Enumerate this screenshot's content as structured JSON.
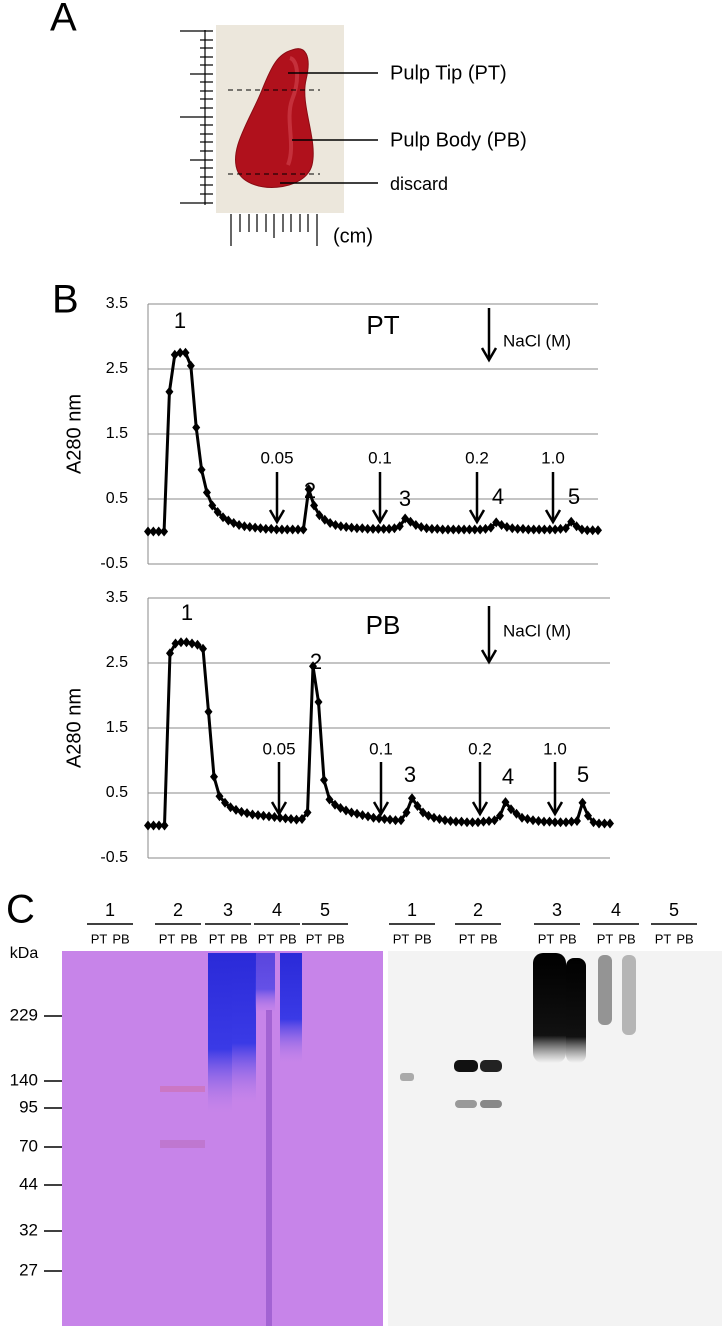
{
  "panel_labels": [
    "A",
    "B",
    "C"
  ],
  "panel_a": {
    "labels": [
      "Pulp Tip (PT)",
      "Pulp Body (PB)",
      "discard"
    ],
    "unit": "(cm)"
  },
  "chart_data": [
    {
      "type": "line",
      "title": "PT",
      "ylabel": "A280 nm",
      "ylim": [
        -0.5,
        3.5
      ],
      "yticks": [
        -0.5,
        0.5,
        1.5,
        2.5,
        3.5
      ],
      "grid": true,
      "color": "#000000",
      "values": [
        0,
        0,
        0,
        0,
        2.15,
        2.72,
        2.75,
        2.75,
        2.55,
        1.6,
        0.95,
        0.6,
        0.4,
        0.3,
        0.22,
        0.17,
        0.13,
        0.1,
        0.08,
        0.07,
        0.06,
        0.05,
        0.04,
        0.04,
        0.03,
        0.03,
        0.03,
        0.03,
        0.03,
        0.03,
        0.65,
        0.4,
        0.25,
        0.18,
        0.13,
        0.1,
        0.08,
        0.07,
        0.06,
        0.05,
        0.05,
        0.04,
        0.04,
        0.04,
        0.04,
        0.04,
        0.05,
        0.08,
        0.2,
        0.15,
        0.1,
        0.07,
        0.05,
        0.04,
        0.04,
        0.03,
        0.03,
        0.03,
        0.03,
        0.03,
        0.03,
        0.03,
        0.03,
        0.04,
        0.06,
        0.14,
        0.1,
        0.07,
        0.05,
        0.04,
        0.04,
        0.03,
        0.03,
        0.03,
        0.03,
        0.03,
        0.03,
        0.04,
        0.05,
        0.15,
        0.08,
        0.03,
        0.02,
        0.02,
        0.02
      ],
      "peak_labels": [
        "1",
        "2",
        "3",
        "4",
        "5"
      ],
      "salt_label": "NaCl (M)",
      "salt_steps": [
        "0.05",
        "0.1",
        "0.2",
        "1.0"
      ]
    },
    {
      "type": "line",
      "title": "PB",
      "ylabel": "A280 nm",
      "ylim": [
        -0.5,
        3.5
      ],
      "yticks": [
        -0.5,
        0.5,
        1.5,
        2.5,
        3.5
      ],
      "grid": true,
      "color": "#000000",
      "values": [
        0,
        0,
        0,
        0,
        2.65,
        2.8,
        2.82,
        2.82,
        2.8,
        2.78,
        2.72,
        1.75,
        0.75,
        0.45,
        0.35,
        0.28,
        0.24,
        0.21,
        0.19,
        0.17,
        0.16,
        0.15,
        0.14,
        0.13,
        0.12,
        0.11,
        0.1,
        0.09,
        0.1,
        0.2,
        2.45,
        1.9,
        0.7,
        0.4,
        0.32,
        0.27,
        0.23,
        0.2,
        0.18,
        0.16,
        0.14,
        0.12,
        0.11,
        0.1,
        0.09,
        0.08,
        0.08,
        0.2,
        0.42,
        0.3,
        0.2,
        0.15,
        0.12,
        0.1,
        0.08,
        0.07,
        0.06,
        0.06,
        0.05,
        0.05,
        0.05,
        0.06,
        0.07,
        0.08,
        0.15,
        0.36,
        0.25,
        0.18,
        0.12,
        0.1,
        0.08,
        0.07,
        0.06,
        0.06,
        0.05,
        0.05,
        0.05,
        0.06,
        0.07,
        0.35,
        0.15,
        0.05,
        0.03,
        0.03,
        0.03
      ],
      "peak_labels": [
        "1",
        "2",
        "3",
        "4",
        "5"
      ],
      "salt_label": "NaCl (M)",
      "salt_steps": [
        "0.05",
        "0.1",
        "0.2",
        "1.0"
      ]
    }
  ],
  "panel_c": {
    "lanes": [
      "1",
      "2",
      "3",
      "4",
      "5"
    ],
    "sublanes": [
      "PT",
      "PB"
    ],
    "unit": "kDa",
    "markers": [
      "229",
      "140",
      "95",
      "70",
      "44",
      "32",
      "27"
    ]
  }
}
